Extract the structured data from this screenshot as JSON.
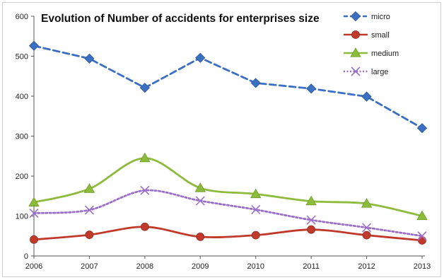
{
  "chart_data": {
    "type": "line",
    "title": "Evolution of Number of accidents for enterprises size",
    "xlabel": "",
    "ylabel": "",
    "categories": [
      "2006",
      "2007",
      "2008",
      "2009",
      "2010",
      "2011",
      "2012",
      "2013"
    ],
    "ylim": [
      0,
      600
    ],
    "yticks": [
      0,
      100,
      200,
      300,
      400,
      500,
      600
    ],
    "grid": false,
    "legend_position": "top-right",
    "series": [
      {
        "name": "micro",
        "values": [
          526,
          494,
          421,
          496,
          433,
          419,
          399,
          320
        ],
        "color": "#3a6fc4",
        "line_style": "dashed",
        "marker": "diamond",
        "smooth": false
      },
      {
        "name": "small",
        "values": [
          41,
          53,
          73,
          48,
          52,
          66,
          52,
          39
        ],
        "color": "#c0392b",
        "line_style": "solid",
        "marker": "circle",
        "smooth": true
      },
      {
        "name": "medium",
        "values": [
          134,
          168,
          245,
          170,
          155,
          137,
          131,
          100
        ],
        "color": "#8dbb3c",
        "line_style": "solid",
        "marker": "triangle",
        "smooth": true
      },
      {
        "name": "large",
        "values": [
          107,
          115,
          164,
          138,
          116,
          90,
          71,
          50
        ],
        "color": "#9b6fc8",
        "line_style": "dotted",
        "marker": "x",
        "smooth": true
      }
    ]
  }
}
